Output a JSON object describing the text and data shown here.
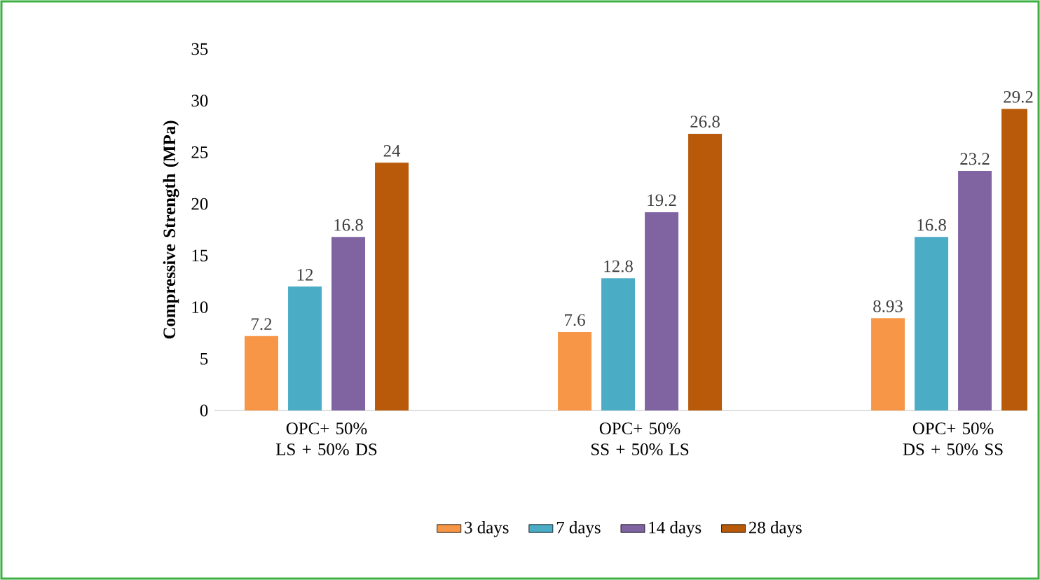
{
  "chart_data": {
    "type": "bar",
    "ylabel": "Compressive Strength (MPa)",
    "categories": [
      "OPC+ 50% LS + 50% DS",
      "OPC+ 50% SS + 50% LS",
      "OPC+ 50% DS + 50% SS"
    ],
    "series": [
      {
        "name": "3  days",
        "color": "#f79646",
        "values": [
          7.2,
          7.6,
          8.93
        ]
      },
      {
        "name": "7  days",
        "color": "#4bacc6",
        "values": [
          12,
          12.8,
          16.8
        ]
      },
      {
        "name": "14 days",
        "color": "#8064a2",
        "values": [
          16.8,
          19.2,
          23.2
        ]
      },
      {
        "name": "28 days",
        "color": "#b85a0a",
        "values": [
          24,
          26.8,
          29.2
        ]
      }
    ],
    "ylim": [
      0,
      35
    ],
    "yticks": [
      0,
      5,
      10,
      15,
      20,
      25,
      30,
      35
    ],
    "data_labels": true,
    "legend": "bottom",
    "grid": false
  }
}
